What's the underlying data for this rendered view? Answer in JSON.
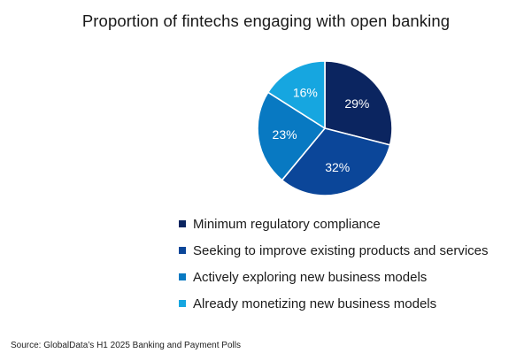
{
  "chart_data": {
    "type": "pie",
    "title": "Proportion of fintechs engaging with open banking",
    "slices": [
      {
        "label": "Minimum regulatory compliance",
        "value": 29,
        "display": "29%",
        "color": "#0b2560"
      },
      {
        "label": "Seeking to improve existing products and services",
        "value": 32,
        "display": "32%",
        "color": "#0b4699"
      },
      {
        "label": "Actively exploring new business models",
        "value": 23,
        "display": "23%",
        "color": "#0879c2"
      },
      {
        "label": "Already monetizing new business models",
        "value": 16,
        "display": "16%",
        "color": "#16a6e0"
      }
    ],
    "legend_position": "bottom",
    "start_angle_deg": 0,
    "direction": "clockwise"
  },
  "source": "Source: GlobalData’s H1 2025 Banking and Payment Polls"
}
